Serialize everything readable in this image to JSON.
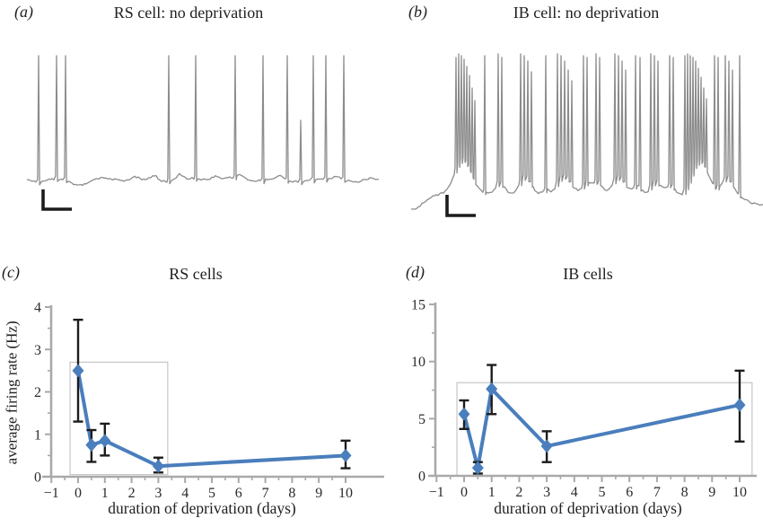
{
  "figure": {
    "background": "#ffffff"
  },
  "panels": {
    "a": {
      "letter": "(a)",
      "title": "RS cell: no deprivation"
    },
    "b": {
      "letter": "(b)",
      "title": "IB cell: no deprivation"
    },
    "c": {
      "letter": "(c)",
      "title": "RS cells",
      "xlabel": "duration of deprivation (days)",
      "ylabel": "average firing rate (Hz)"
    },
    "d": {
      "letter": "(d)",
      "title": "IB cells",
      "xlabel": "duration of deprivation (days)"
    }
  },
  "colors": {
    "series_blue": "#4a7ebc",
    "error_bar": "#1c1c1c",
    "axis_gray": "#a9a9a9",
    "tick_text": "#2a2a2a",
    "trace_gray": "#8c8c8c",
    "scale_bar": "#1c1c1c",
    "box_border": "#c6c6c6",
    "box_fill": "#ffffff",
    "text": "#1f1f1f"
  },
  "chart_data": [
    {
      "id": "c",
      "type": "line",
      "title": "RS cells",
      "xlabel": "duration of deprivation (days)",
      "ylabel": "average firing rate (Hz)",
      "xlim": [
        -1,
        10.5
      ],
      "ylim": [
        0,
        4
      ],
      "xticks": [
        -1,
        0,
        1,
        2,
        3,
        4,
        5,
        6,
        7,
        8,
        9,
        10
      ],
      "yticks": [
        0,
        1,
        2,
        3,
        4
      ],
      "grid": false,
      "legend": null,
      "marker": "diamond",
      "x": [
        0,
        0.5,
        1,
        3,
        10
      ],
      "y": [
        2.5,
        0.75,
        0.85,
        0.25,
        0.5
      ],
      "err_low": [
        1.3,
        0.35,
        0.5,
        0.1,
        0.2
      ],
      "err_high": [
        3.7,
        1.1,
        1.25,
        0.45,
        0.85
      ],
      "highlight_box": {
        "x0": -0.3,
        "x1": 3.35,
        "y0": 0.05,
        "y1": 2.7
      }
    },
    {
      "id": "d",
      "type": "line",
      "title": "IB cells",
      "xlabel": "duration of deprivation (days)",
      "ylabel": "",
      "xlim": [
        -1,
        10.5
      ],
      "ylim": [
        0,
        15
      ],
      "xticks": [
        -1,
        0,
        1,
        2,
        3,
        4,
        5,
        6,
        7,
        8,
        9,
        10
      ],
      "yticks": [
        0,
        5,
        10,
        15
      ],
      "grid": false,
      "legend": null,
      "marker": "diamond",
      "x": [
        0,
        0.5,
        1,
        3,
        10
      ],
      "y": [
        5.4,
        0.7,
        7.6,
        2.6,
        6.2
      ],
      "err_low": [
        4.1,
        0.2,
        5.4,
        1.2,
        3.0
      ],
      "err_high": [
        6.6,
        1.2,
        9.7,
        3.9,
        9.2
      ],
      "highlight_box": {
        "x0": -0.26,
        "x1": 10.45,
        "y0": 0.0,
        "y1": 8.15
      }
    }
  ]
}
